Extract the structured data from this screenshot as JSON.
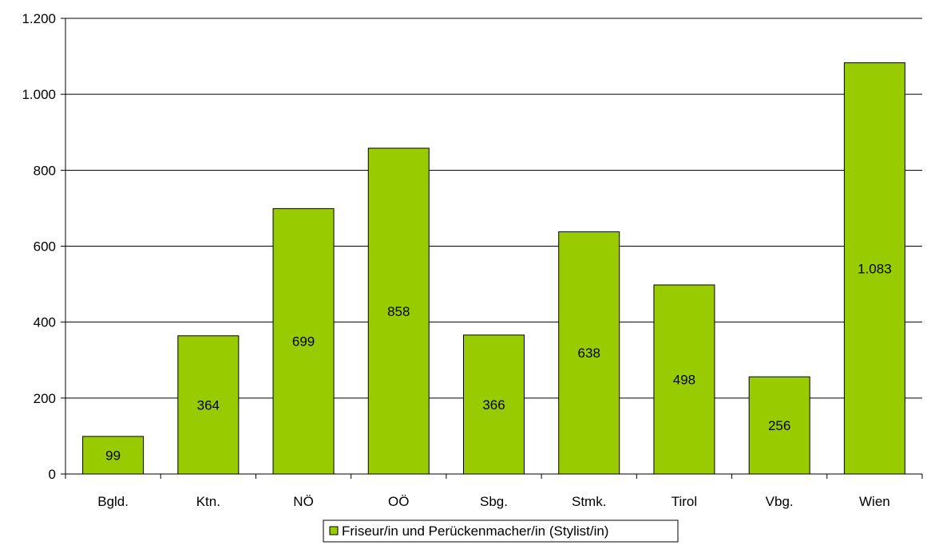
{
  "chart_data": {
    "type": "bar",
    "categories": [
      "Bgld.",
      "Ktn.",
      "NÖ",
      "OÖ",
      "Sbg.",
      "Stmk.",
      "Tirol",
      "Vbg.",
      "Wien"
    ],
    "series": [
      {
        "name": "Friseur/in und Perückenmacher/in (Stylist/in)",
        "values": [
          99,
          364,
          699,
          858,
          366,
          638,
          498,
          256,
          1083
        ],
        "value_labels": [
          "99",
          "364",
          "699",
          "858",
          "366",
          "638",
          "498",
          "256",
          "1.083"
        ],
        "color": "#99CC00"
      }
    ],
    "ylim": [
      0,
      1200
    ],
    "y_ticks": [
      0,
      200,
      400,
      600,
      800,
      1000,
      1200
    ],
    "y_tick_labels": [
      "0",
      "200",
      "400",
      "600",
      "800",
      "1.000",
      "1.200"
    ],
    "grid": true,
    "legend_position": "bottom-center"
  }
}
